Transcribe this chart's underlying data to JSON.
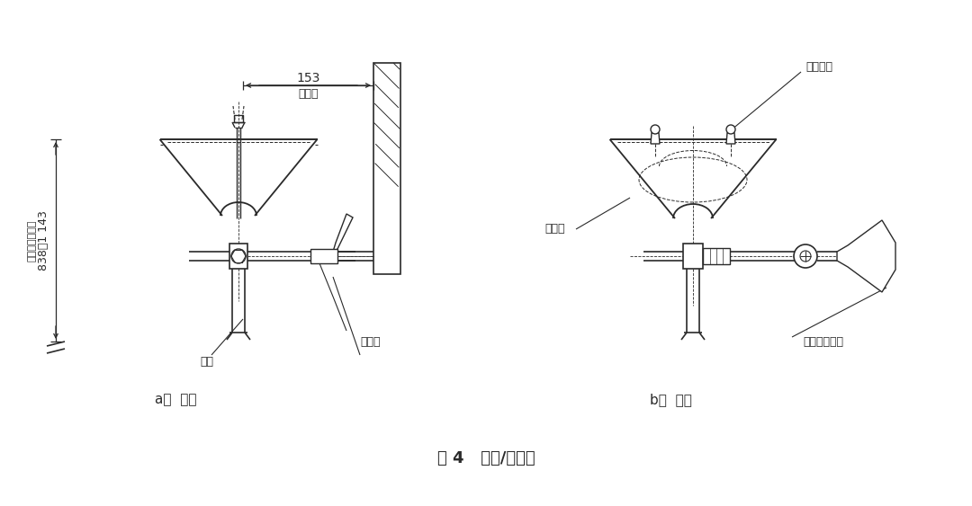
{
  "bg_color": "#ffffff",
  "line_color": "#2a2a2a",
  "title": "图 4   洗眼/洗脸器",
  "label_a": "a）  正面",
  "label_b": "b）  侧面",
  "dim_153": "153",
  "dim_min": "最小値",
  "dim_height": "838～1 143",
  "dim_height_label": "至使用者站立面",
  "label_pipe": "管道",
  "label_valve": "控制阀",
  "label_basin": "洗眼盆",
  "label_nozzle": "洗眼喷头",
  "label_actuator": "阀门驱动装置"
}
